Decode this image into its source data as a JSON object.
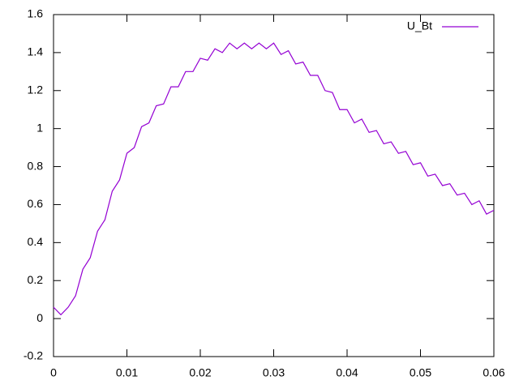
{
  "chart_data": {
    "type": "line",
    "x": [
      0,
      0.001,
      0.002,
      0.003,
      0.004,
      0.005,
      0.006,
      0.007,
      0.008,
      0.009,
      0.01,
      0.011,
      0.012,
      0.013,
      0.014,
      0.015,
      0.016,
      0.017,
      0.018,
      0.019,
      0.02,
      0.021,
      0.022,
      0.023,
      0.024,
      0.025,
      0.026,
      0.027,
      0.028,
      0.029,
      0.03,
      0.031,
      0.032,
      0.033,
      0.034,
      0.035,
      0.036,
      0.037,
      0.038,
      0.039,
      0.04,
      0.041,
      0.042,
      0.043,
      0.044,
      0.045,
      0.046,
      0.047,
      0.048,
      0.049,
      0.05,
      0.051,
      0.052,
      0.053,
      0.054,
      0.055,
      0.056,
      0.057,
      0.058,
      0.059,
      0.06
    ],
    "series": [
      {
        "name": "U_Bt",
        "color": "#9400d3",
        "values": [
          0.06,
          0.02,
          0.06,
          0.12,
          0.26,
          0.32,
          0.46,
          0.52,
          0.67,
          0.73,
          0.87,
          0.9,
          1.01,
          1.03,
          1.12,
          1.13,
          1.22,
          1.22,
          1.3,
          1.3,
          1.37,
          1.36,
          1.42,
          1.4,
          1.45,
          1.42,
          1.45,
          1.42,
          1.45,
          1.42,
          1.45,
          1.39,
          1.41,
          1.34,
          1.35,
          1.28,
          1.28,
          1.2,
          1.19,
          1.1,
          1.1,
          1.03,
          1.05,
          0.98,
          0.99,
          0.92,
          0.93,
          0.87,
          0.88,
          0.81,
          0.82,
          0.75,
          0.76,
          0.7,
          0.71,
          0.65,
          0.66,
          0.6,
          0.62,
          0.55,
          0.57
        ]
      }
    ],
    "xlim": [
      0,
      0.06
    ],
    "xticks": [
      0,
      0.01,
      0.02,
      0.03,
      0.04,
      0.05,
      0.06
    ],
    "ylim": [
      -0.2,
      1.6
    ],
    "yticks": [
      -0.2,
      0,
      0.2,
      0.4,
      0.6,
      0.8,
      1,
      1.2,
      1.4,
      1.6
    ],
    "legend": "top-right"
  }
}
